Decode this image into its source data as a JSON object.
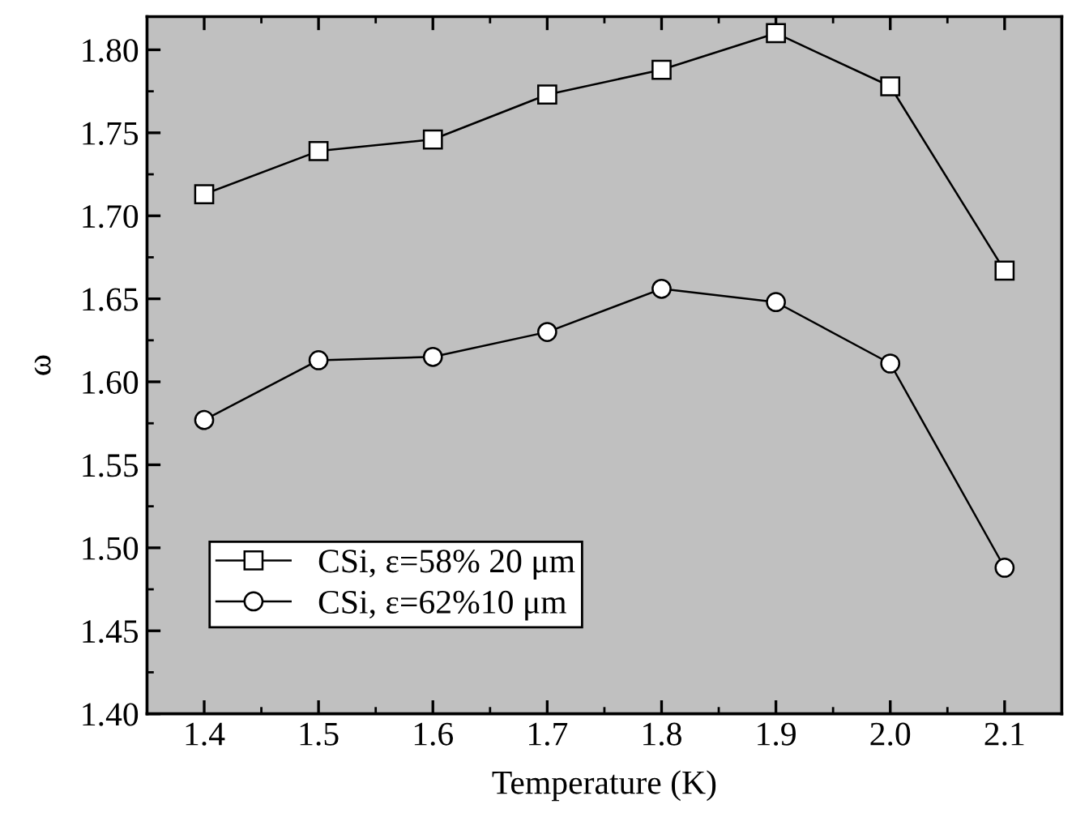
{
  "chart_data": {
    "type": "line",
    "xlabel": "Temperature (K)",
    "ylabel": "ω",
    "x": [
      1.4,
      1.5,
      1.6,
      1.7,
      1.8,
      1.9,
      2.0,
      2.1
    ],
    "series": [
      {
        "name": "CSi, ε=58% 20 μm",
        "color": "#000000",
        "marker": "square",
        "values": [
          1.713,
          1.739,
          1.746,
          1.773,
          1.788,
          1.81,
          1.778,
          1.667
        ]
      },
      {
        "name": "CSi, ε=62%10 μm",
        "color": "#000000",
        "marker": "circle",
        "values": [
          1.577,
          1.613,
          1.615,
          1.63,
          1.656,
          1.648,
          1.611,
          1.488
        ]
      }
    ],
    "xlim": [
      1.35,
      2.15
    ],
    "ylim": [
      1.4,
      1.82
    ],
    "xticks": [
      {
        "value": 1.4,
        "label": "1.4"
      },
      {
        "value": 1.5,
        "label": "1.5"
      },
      {
        "value": 1.6,
        "label": "1.6"
      },
      {
        "value": 1.7,
        "label": "1.7"
      },
      {
        "value": 1.8,
        "label": "1.8"
      },
      {
        "value": 1.9,
        "label": "1.9"
      },
      {
        "value": 2.0,
        "label": "2.0"
      },
      {
        "value": 2.1,
        "label": "2.1"
      }
    ],
    "yticks": [
      {
        "value": 1.4,
        "label": "1.40"
      },
      {
        "value": 1.45,
        "label": "1.45"
      },
      {
        "value": 1.5,
        "label": "1.50"
      },
      {
        "value": 1.55,
        "label": "1.55"
      },
      {
        "value": 1.6,
        "label": "1.60"
      },
      {
        "value": 1.65,
        "label": "1.65"
      },
      {
        "value": 1.7,
        "label": "1.70"
      },
      {
        "value": 1.75,
        "label": "1.75"
      },
      {
        "value": 1.8,
        "label": "1.80"
      }
    ],
    "grid": false,
    "legend": "bottom left",
    "line_style": "solid"
  }
}
